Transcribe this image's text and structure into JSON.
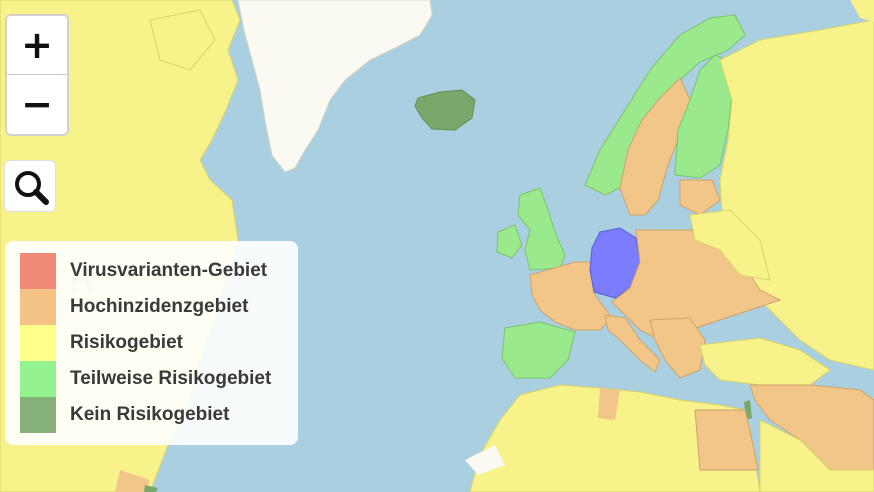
{
  "controls": {
    "zoom_in": "+",
    "zoom_out": "−",
    "search_icon": "magnifier-icon"
  },
  "legend": {
    "items": [
      {
        "label": "Virusvarianten-Gebiet",
        "color": "#f08a78"
      },
      {
        "label": "Hochinzidenzgebiet",
        "color": "#f5c285"
      },
      {
        "label": "Risikogebiet",
        "color": "#ffff8a"
      },
      {
        "label": "Teilweise Risikogebiet",
        "color": "#95f291"
      },
      {
        "label": "Kein Risikogebiet",
        "color": "#86b07a"
      }
    ]
  },
  "map_colors": {
    "sea": "#a9cfe0",
    "greenland": "#fbfaf2",
    "germany": "#7c7cff",
    "risk": "#f7f28a",
    "high_incidence": "#f1c688",
    "partial_risk": "#9be98d",
    "no_risk": "#78a86a"
  }
}
